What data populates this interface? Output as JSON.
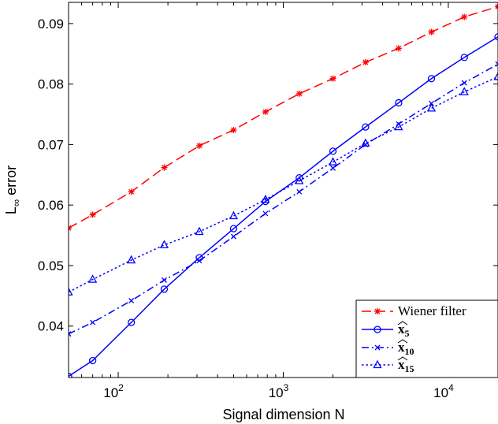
{
  "chart_data": {
    "type": "line",
    "xlabel": "Signal dimension N",
    "ylabel": "L∞ error",
    "ylabel_main": "L",
    "ylabel_sub": "∞",
    "ylabel_rest": " error",
    "xscale": "log",
    "xlim": [
      50,
      20000
    ],
    "ylim": [
      0.0315,
      0.0935
    ],
    "yticks": [
      0.04,
      0.05,
      0.06,
      0.07,
      0.08,
      0.09
    ],
    "ytick_labels": [
      "0.04",
      "0.05",
      "0.06",
      "0.07",
      "0.08",
      "0.09"
    ],
    "xticks": [
      100,
      1000,
      10000
    ],
    "xtick_labels": [
      {
        "base": "10",
        "exp": "2"
      },
      {
        "base": "10",
        "exp": "3"
      },
      {
        "base": "10",
        "exp": "4"
      }
    ],
    "grid": false,
    "legend_position": "bottom-right",
    "x": [
      50,
      70,
      120,
      190,
      310,
      500,
      780,
      1250,
      2000,
      3150,
      5000,
      7900,
      12500,
      20000
    ],
    "series": [
      {
        "name": "Wiener filter",
        "color": "#ff0000",
        "line_style": "dashed",
        "marker": "asterisk",
        "values": [
          0.0562,
          0.0584,
          0.0622,
          0.0662,
          0.0698,
          0.0724,
          0.0754,
          0.0784,
          0.0809,
          0.0836,
          0.0859,
          0.0886,
          0.0911,
          0.0928
        ]
      },
      {
        "name": "x5",
        "legend_base": "x",
        "legend_sub": "5",
        "color": "#0000ff",
        "line_style": "solid",
        "marker": "circle",
        "values": [
          0.0317,
          0.0343,
          0.0406,
          0.0461,
          0.0513,
          0.0561,
          0.0606,
          0.0645,
          0.0689,
          0.0729,
          0.0769,
          0.0809,
          0.0844,
          0.0878
        ]
      },
      {
        "name": "x10",
        "legend_base": "x",
        "legend_sub": "10",
        "color": "#0000ff",
        "line_style": "dashdot",
        "marker": "x",
        "values": [
          0.0387,
          0.0406,
          0.0442,
          0.0476,
          0.0508,
          0.0548,
          0.0586,
          0.0622,
          0.0661,
          0.07,
          0.0734,
          0.0768,
          0.0802,
          0.0833
        ]
      },
      {
        "name": "x15",
        "legend_base": "x",
        "legend_sub": "15",
        "color": "#0000ff",
        "line_style": "dotted",
        "marker": "triangle",
        "values": [
          0.0456,
          0.0477,
          0.0509,
          0.0534,
          0.0556,
          0.0582,
          0.0609,
          0.064,
          0.0671,
          0.0702,
          0.0729,
          0.076,
          0.0787,
          0.0812
        ]
      }
    ]
  }
}
